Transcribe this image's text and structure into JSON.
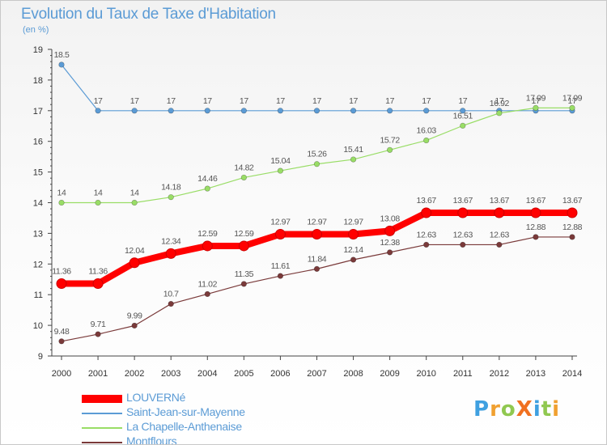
{
  "chart_data": {
    "type": "line",
    "title": "Evolution du Taux de Taxe d'Habitation",
    "ylabel": "(en %)",
    "xlabel": "",
    "x": [
      "2000",
      "2001",
      "2002",
      "2003",
      "2004",
      "2005",
      "2006",
      "2007",
      "2008",
      "2009",
      "2010",
      "2011",
      "2012",
      "2013",
      "2014"
    ],
    "ylim": [
      9,
      19
    ],
    "yticks": [
      9,
      10,
      11,
      12,
      13,
      14,
      15,
      16,
      17,
      18,
      19
    ],
    "grid": false,
    "legend_position": "bottom-left",
    "series": [
      {
        "name": "LOUVERNé",
        "color": "#ff0000",
        "values": [
          11.36,
          11.36,
          12.04,
          12.34,
          12.59,
          12.59,
          12.97,
          12.97,
          12.97,
          13.08,
          13.67,
          13.67,
          13.67,
          13.67,
          13.67
        ],
        "labels": [
          "11.36",
          "11.36",
          "12.04",
          "12.34",
          "12.59",
          "12.59",
          "12.97",
          "12.97",
          "12.97",
          "13.08",
          "13.67",
          "13.67",
          "13.67",
          "13.67",
          "13.67"
        ]
      },
      {
        "name": "Saint-Jean-sur-Mayenne",
        "color": "#5b9bd5",
        "values": [
          18.5,
          17,
          17,
          17,
          17,
          17,
          17,
          17,
          17,
          17,
          17,
          17,
          17,
          17,
          17
        ],
        "labels": [
          "18.5",
          "17",
          "17",
          "17",
          "17",
          "17",
          "17",
          "17",
          "17",
          "17",
          "17",
          "17",
          "17",
          "17",
          "17"
        ]
      },
      {
        "name": "La Chapelle-Anthenaise",
        "color": "#99dd66",
        "values": [
          14,
          14,
          14,
          14.18,
          14.46,
          14.82,
          15.04,
          15.26,
          15.41,
          15.72,
          16.03,
          16.51,
          16.92,
          17.09,
          17.09
        ],
        "labels": [
          "14",
          "14",
          "14",
          "14.18",
          "14.46",
          "14.82",
          "15.04",
          "15.26",
          "15.41",
          "15.72",
          "16.03",
          "16.51",
          "16.92",
          "17.09",
          "17.09"
        ]
      },
      {
        "name": "Montflours",
        "color": "#7a3a3a",
        "values": [
          9.48,
          9.71,
          9.99,
          10.7,
          11.02,
          11.35,
          11.61,
          11.84,
          12.14,
          12.38,
          12.63,
          12.63,
          12.63,
          12.88,
          12.88
        ],
        "labels": [
          "9.48",
          "9.71",
          "9.99",
          "10.7",
          "11.02",
          "11.35",
          "11.61",
          "11.84",
          "12.14",
          "12.38",
          "12.63",
          "12.63",
          "12.63",
          "12.88",
          "12.88"
        ]
      }
    ]
  },
  "logo": {
    "text": "ProXiti",
    "letters": [
      {
        "ch": "P",
        "color": "#3fa0e0"
      },
      {
        "ch": "r",
        "color": "#f0a030"
      },
      {
        "ch": "o",
        "color": "#90c850"
      },
      {
        "ch": "X",
        "color": "#f07020"
      },
      {
        "ch": "i",
        "color": "#3fa0e0"
      },
      {
        "ch": "t",
        "color": "#90c850"
      },
      {
        "ch": "i",
        "color": "#f0a030"
      }
    ]
  }
}
